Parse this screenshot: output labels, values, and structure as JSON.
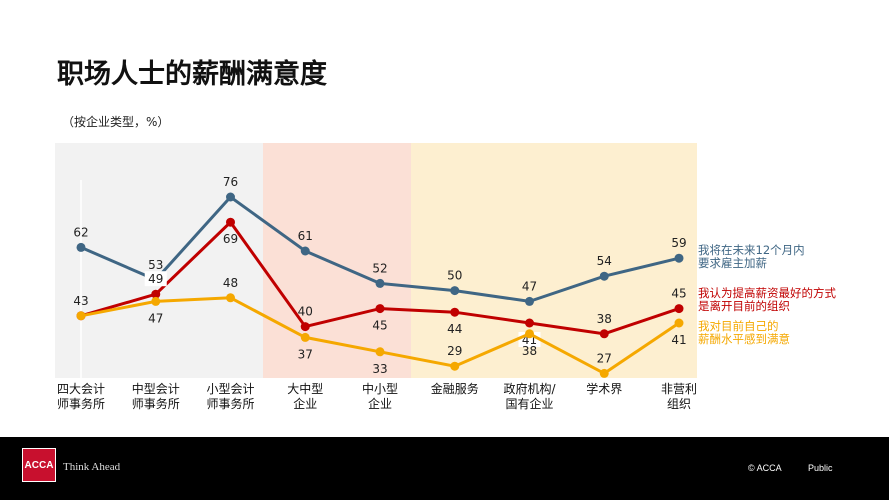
{
  "chart_data": {
    "type": "line",
    "title": "职场人士的薪酬满意度",
    "subtitle": "（按企业类型，%）",
    "categories": [
      "四大会计\n师事务所",
      "中型会计\n师事务所",
      "小型会计\n师事务所",
      "大中型\n企业",
      "中小型\n企业",
      "金融服务",
      "政府机构/\n国有企业",
      "学术界",
      "非营利\n组织"
    ],
    "series": [
      {
        "name": "我将在未来12个月内\n要求雇主加薪",
        "color": "#3f6684",
        "values": [
          62,
          53,
          76,
          61,
          52,
          50,
          47,
          54,
          59
        ]
      },
      {
        "name": "我认为提高薪资最好的方式\n是离开目前的组织",
        "color": "#c00000",
        "values": [
          43,
          49,
          69,
          40,
          45,
          44,
          41,
          38,
          45
        ]
      },
      {
        "name": "我对目前自己的\n薪酬水平感到满意",
        "color": "#f5a800",
        "values": [
          43,
          47,
          48,
          37,
          33,
          29,
          38,
          27,
          41
        ]
      }
    ],
    "band_colors": [
      "#f2f2f2",
      "#fbe0d6",
      "#fdefd0"
    ],
    "legend_position": "right",
    "grid": false
  },
  "footer": {
    "logo": "ACCA",
    "tagline": "Think Ahead",
    "copyright": "© ACCA",
    "classification": "Public"
  }
}
